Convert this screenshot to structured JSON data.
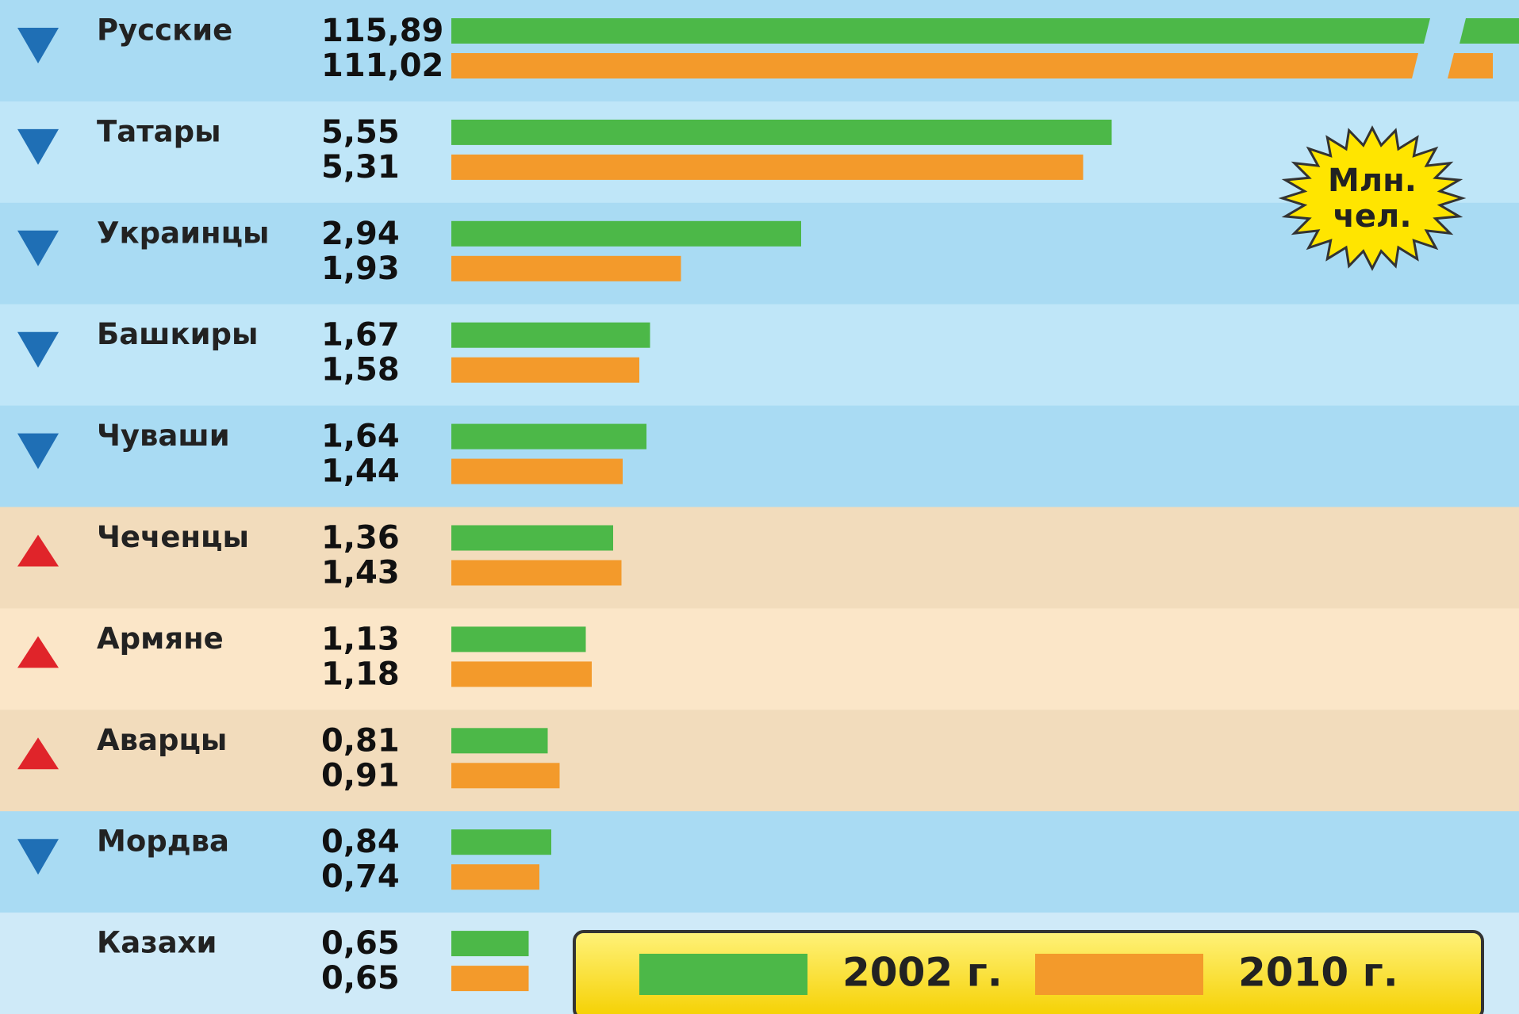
{
  "chart_data": {
    "type": "bar",
    "orientation": "horizontal",
    "categories": [
      "Русские",
      "Татары",
      "Украинцы",
      "Башкиры",
      "Чуваши",
      "Чеченцы",
      "Армяне",
      "Аварцы",
      "Мордва",
      "Казахи"
    ],
    "series": [
      {
        "name": "2002 г.",
        "color": "#4cb848",
        "values": [
          115.89,
          5.55,
          2.94,
          1.67,
          1.64,
          1.36,
          1.13,
          0.81,
          0.84,
          0.65
        ],
        "value_labels": [
          "115,89",
          "5,55",
          "2,94",
          "1,67",
          "1,64",
          "1,36",
          "1,13",
          "0,81",
          "0,84",
          "0,65"
        ]
      },
      {
        "name": "2010 г.",
        "color": "#f39a2b",
        "values": [
          111.02,
          5.31,
          1.93,
          1.58,
          1.44,
          1.43,
          1.18,
          0.91,
          0.74,
          0.65
        ],
        "value_labels": [
          "111,02",
          "5,31",
          "1,93",
          "1,58",
          "1,44",
          "1,43",
          "1,18",
          "0,91",
          "0,74",
          "0,65"
        ]
      }
    ],
    "unit_label": [
      "Млн.",
      "чел."
    ]
  }
}
